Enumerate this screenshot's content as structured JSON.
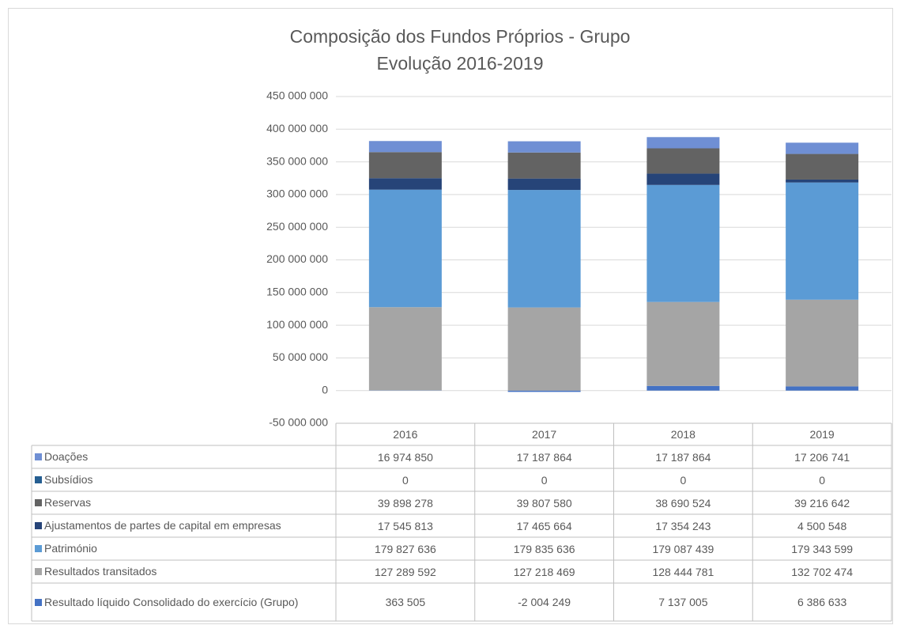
{
  "chart_data": {
    "type": "stacked_bar",
    "title": "Composição dos Fundos Próprios  - Grupo",
    "subtitle": "Evolução 2016-2019",
    "categories": [
      "2016",
      "2017",
      "2018",
      "2019"
    ],
    "series": [
      {
        "name": "Doações",
        "color": "#6f8fd4",
        "values": [
          16974850,
          17187864,
          17187864,
          17206741
        ],
        "value_labels": [
          "16 974 850",
          "17 187 864",
          "17 187 864",
          "17 206 741"
        ]
      },
      {
        "name": "Subsídios",
        "color": "#255e91",
        "values": [
          0,
          0,
          0,
          0
        ]
      },
      {
        "name": "Reservas",
        "color": "#636363",
        "values": [
          39898278,
          39807580,
          38690524,
          39216642
        ],
        "value_labels": [
          "39 898 278",
          "39 807 580",
          "38 690 524",
          "39 216 642"
        ]
      },
      {
        "name": "Ajustamentos de partes de capital em empresas",
        "color": "#264478",
        "values": [
          17545813,
          17465664,
          17354243,
          4500548
        ],
        "value_labels": [
          "17 545 813",
          "17 465 664",
          "17 354 243",
          "4 500 548"
        ]
      },
      {
        "name": "Património",
        "color": "#5b9bd5",
        "values": [
          179827636,
          179835636,
          179087439,
          179343599
        ],
        "value_labels": [
          "179 827 636",
          "179 835 636",
          "179 087 439",
          "179 343 599"
        ]
      },
      {
        "name": "Resultados transitados",
        "color": "#a5a5a5",
        "values": [
          127289592,
          127218469,
          128444781,
          132702474
        ],
        "value_labels": [
          "127 289 592",
          "127 218 469",
          "128 444 781",
          "132 702 474"
        ]
      },
      {
        "name": "Resultado líquido Consolidado do exercício (Grupo)",
        "color": "#4472c4",
        "values": [
          363505,
          -2004249,
          7137005,
          6386633
        ],
        "value_labels": [
          "363 505",
          "-2 004 249",
          "7 137 005",
          "6 386 633"
        ]
      }
    ],
    "ylim": [
      -50000000,
      450000000
    ],
    "yticks": [
      {
        "value": -50000000,
        "label": "-50 000 000"
      },
      0,
      {
        "value": 50000000,
        "label": "50 000 000"
      },
      {
        "value": 100000000,
        "label": "100 000 000"
      },
      {
        "value": 150000000,
        "label": "150 000 000"
      },
      {
        "value": 200000000,
        "label": "200 000 000"
      },
      {
        "value": 250000000,
        "label": "250 000 000"
      },
      {
        "value": 300000000,
        "label": "300 000 000"
      },
      {
        "value": 350000000,
        "label": "350 000 000"
      },
      {
        "value": 400000000,
        "label": "400 000 000"
      },
      {
        "value": 450000000,
        "label": "450 000 000"
      }
    ],
    "grid": true
  }
}
